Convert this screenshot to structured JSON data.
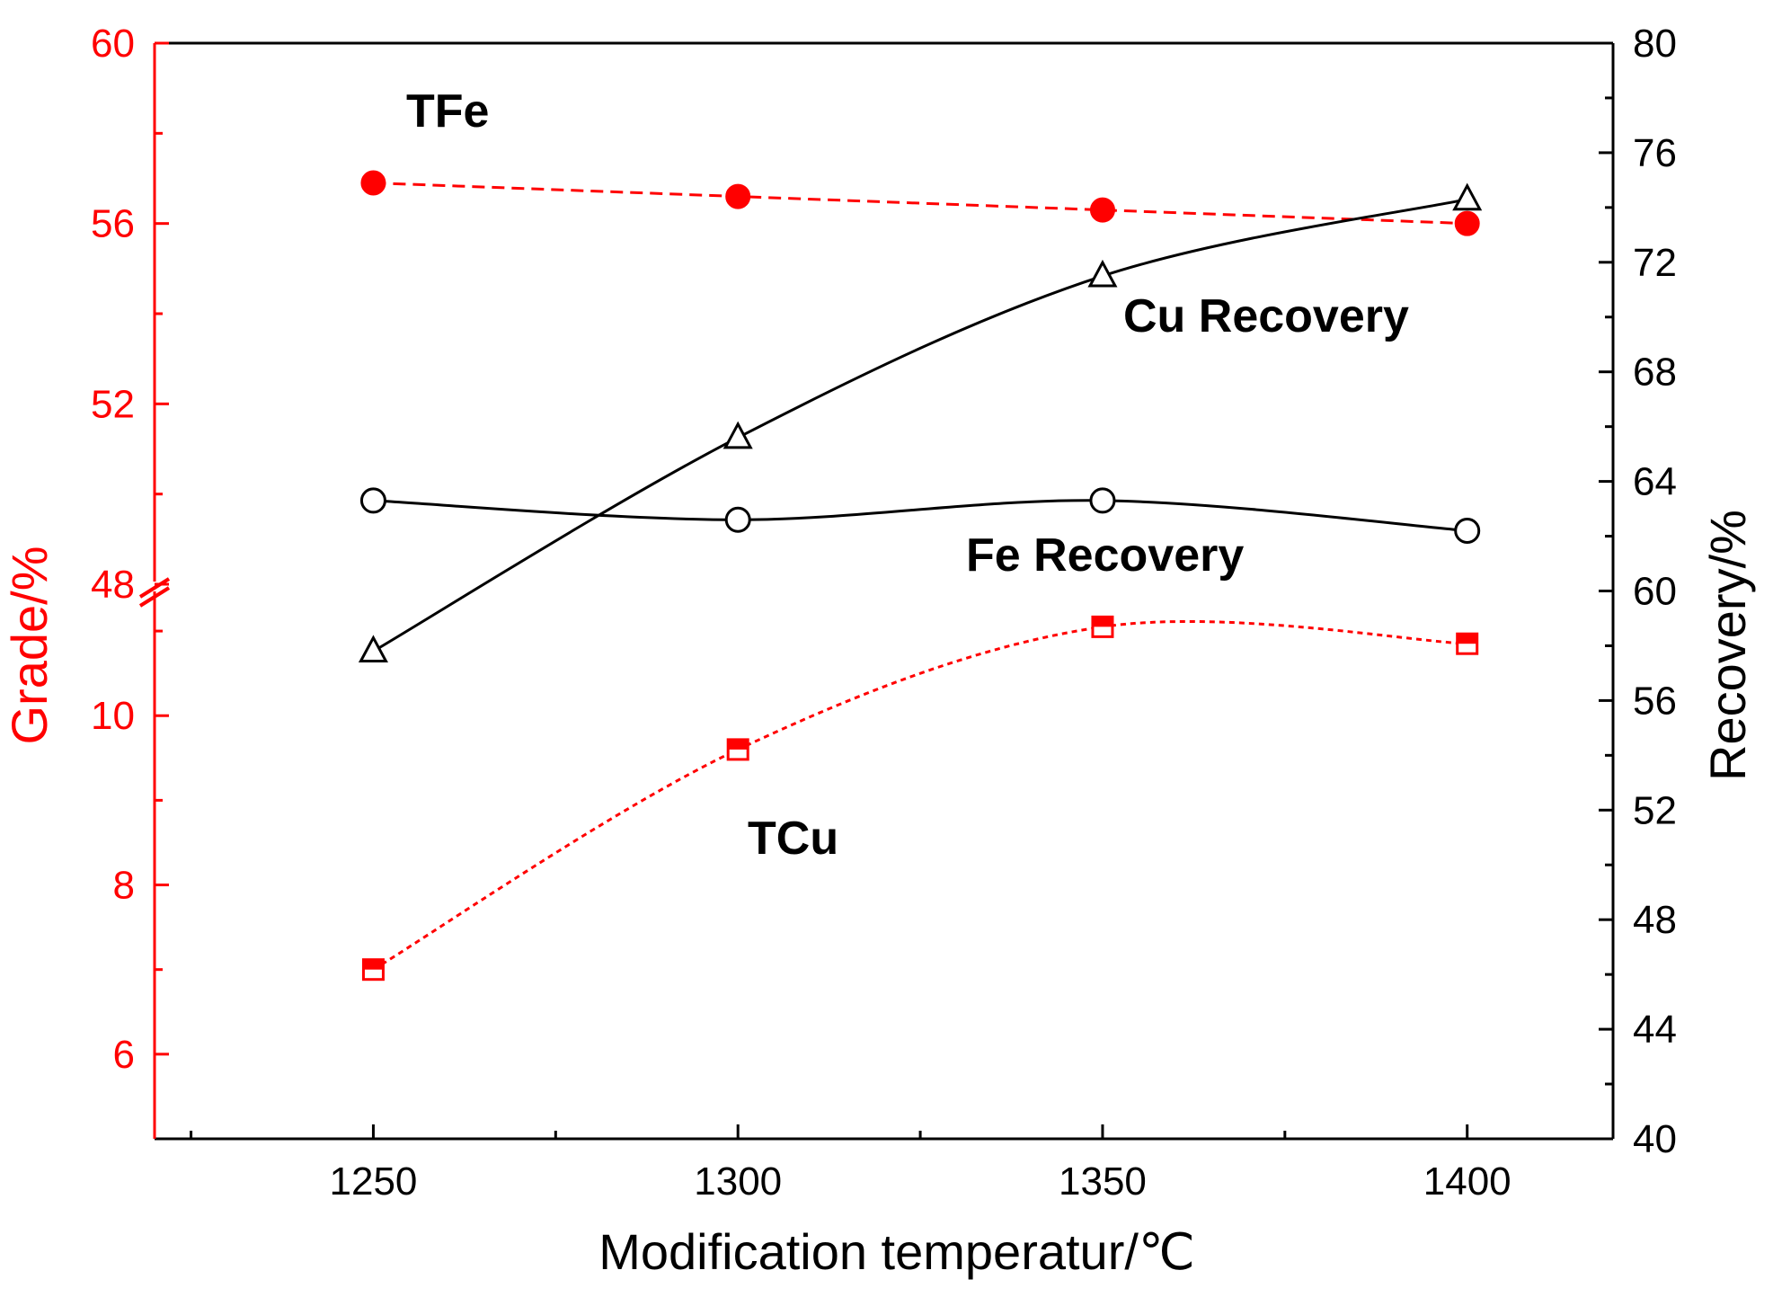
{
  "chart_data": {
    "type": "line",
    "title": "",
    "xlabel": "Modification temperatur/℃",
    "ylabel_left": "Grade/%",
    "ylabel_right": "Recovery/%",
    "x": [
      1250,
      1300,
      1350,
      1400
    ],
    "x_ticks": [
      1250,
      1300,
      1350,
      1400
    ],
    "x_tick_labels": [
      "1250",
      "1300",
      "1350",
      "1400"
    ],
    "xlim": [
      1220,
      1420
    ],
    "left_axis": {
      "broken": true,
      "upper_segment": {
        "ylim": [
          48,
          60
        ],
        "ticks": [
          48,
          52,
          56,
          60
        ],
        "tick_labels": [
          "48",
          "52",
          "56",
          "60"
        ]
      },
      "lower_segment": {
        "ylim": [
          5,
          11.5
        ],
        "ticks": [
          6,
          8,
          10
        ],
        "tick_labels": [
          "6",
          "8",
          "10"
        ]
      }
    },
    "right_axis": {
      "ylim": [
        40,
        80
      ],
      "ticks": [
        40,
        44,
        48,
        52,
        56,
        60,
        64,
        68,
        72,
        76,
        80
      ],
      "tick_labels": [
        "40",
        "44",
        "48",
        "52",
        "56",
        "60",
        "64",
        "68",
        "72",
        "76",
        "80"
      ]
    },
    "colors": {
      "grade": "#ff0000",
      "recovery": "#000000"
    },
    "series": [
      {
        "name": "TFe",
        "axis": "left",
        "segment": "upper",
        "marker": "filled-circle",
        "line": "dashed",
        "color": "#ff0000",
        "values": [
          56.9,
          56.6,
          56.3,
          56.0
        ]
      },
      {
        "name": "TCu",
        "axis": "left",
        "segment": "lower",
        "marker": "half-filled-square",
        "line": "dotted",
        "color": "#ff0000",
        "values": [
          7.0,
          9.6,
          11.05,
          10.85
        ]
      },
      {
        "name": "Cu Recovery",
        "axis": "right",
        "marker": "open-triangle",
        "line": "solid",
        "color": "#000000",
        "values": [
          57.8,
          65.6,
          71.5,
          74.3
        ]
      },
      {
        "name": "Fe Recovery",
        "axis": "right",
        "marker": "open-circle",
        "line": "solid",
        "color": "#000000",
        "values": [
          63.3,
          62.6,
          63.3,
          62.2
        ]
      }
    ],
    "annotations": [
      {
        "text": "TFe",
        "series": "TFe"
      },
      {
        "text": "Cu Recovery",
        "series": "Cu Recovery"
      },
      {
        "text": "Fe Recovery",
        "series": "Fe Recovery"
      },
      {
        "text": "TCu",
        "series": "TCu"
      }
    ]
  }
}
